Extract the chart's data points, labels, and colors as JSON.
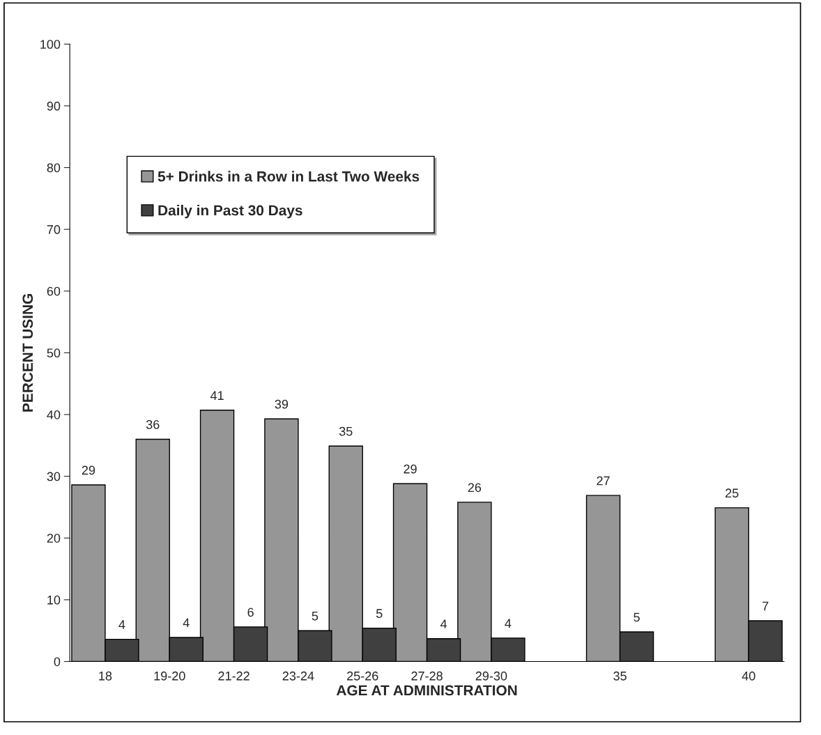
{
  "chart_data": {
    "type": "bar",
    "xlabel": "AGE AT ADMINISTRATION",
    "ylabel": "PERCENT USING",
    "categories": [
      "18",
      "19-20",
      "21-22",
      "23-24",
      "25-26",
      "27-28",
      "29-30",
      null,
      "35",
      null,
      "40"
    ],
    "series": [
      {
        "name": "5+ Drinks in a Row in Last Two Weeks",
        "color": "#969696",
        "values": [
          28.6,
          36.0,
          40.7,
          39.3,
          34.9,
          28.8,
          25.8,
          null,
          26.9,
          null,
          24.9
        ],
        "value_labels": [
          "29",
          "36",
          "41",
          "39",
          "35",
          "29",
          "26",
          null,
          "27",
          null,
          "25"
        ]
      },
      {
        "name": "Daily in Past 30 Days",
        "color": "#404040",
        "values": [
          3.6,
          3.9,
          5.6,
          5.0,
          5.4,
          3.7,
          3.8,
          null,
          4.8,
          null,
          6.6
        ],
        "value_labels": [
          "4",
          "4",
          "6",
          "5",
          "5",
          "4",
          "4",
          null,
          "5",
          null,
          "7"
        ]
      }
    ],
    "ylim": [
      0,
      100
    ],
    "yticks": [
      0,
      10,
      20,
      30,
      40,
      50,
      60,
      70,
      80,
      90,
      100
    ],
    "grid": false,
    "legend": "top left"
  }
}
